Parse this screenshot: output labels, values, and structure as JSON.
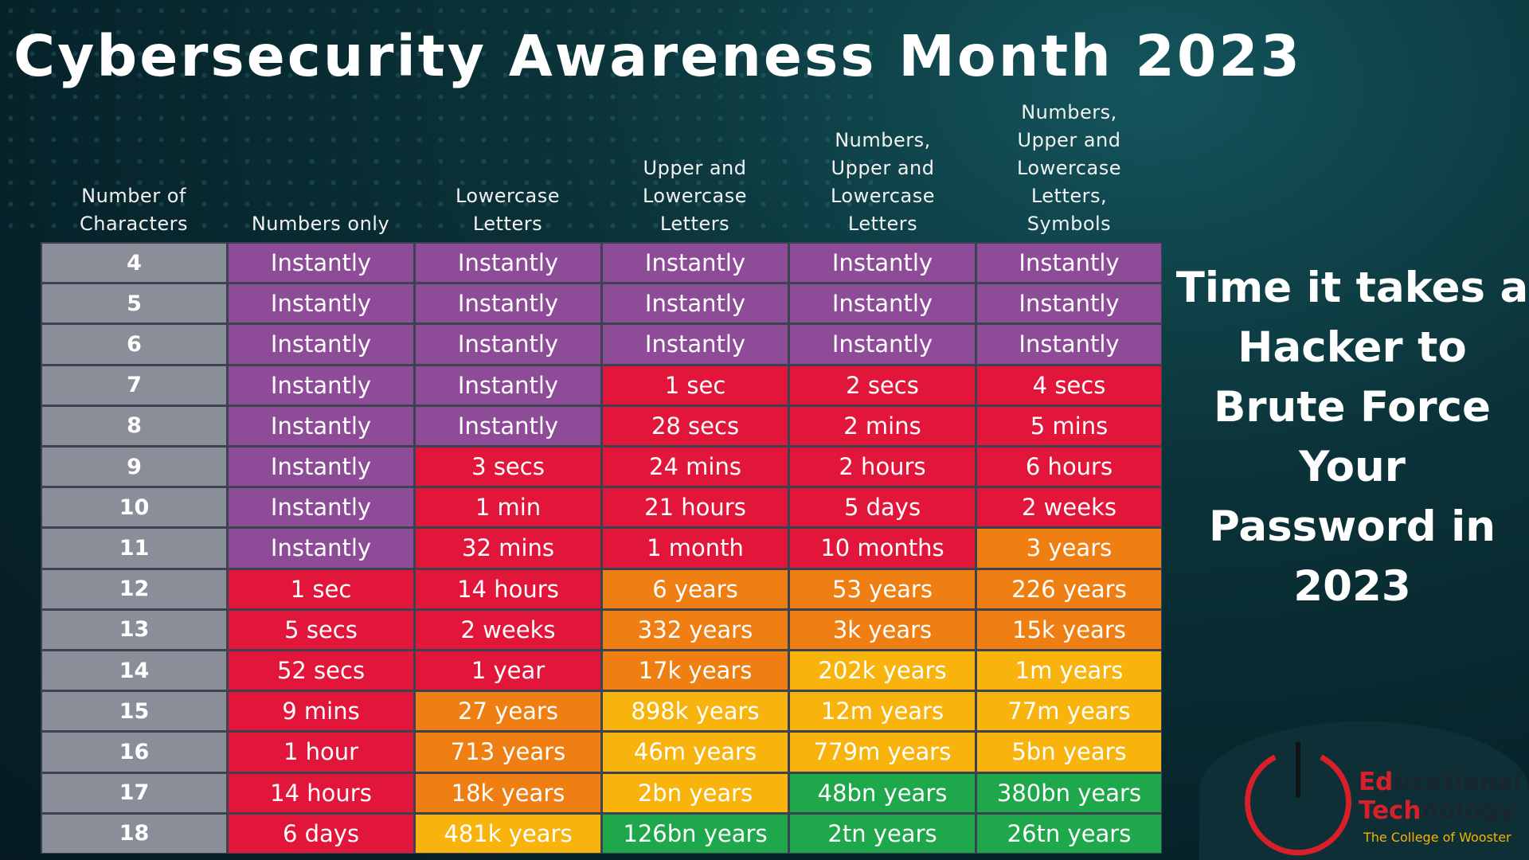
{
  "title": "Cybersecurity Awareness Month 2023",
  "side_title": "Time it takes a\nHacker to\nBrute Force\nYour\nPassword in\n2023",
  "headers": [
    "Number of\nCharacters",
    "Numbers only",
    "Lowercase\nLetters",
    "Upper and\nLowercase\nLetters",
    "Numbers,\nUpper and\nLowercase\nLetters",
    "Numbers,\nUpper and\nLowercase\nLetters,\nSymbols"
  ],
  "colors": {
    "label": "#8a8e99",
    "P": "#8d4b98",
    "R": "#e2163a",
    "O": "#ef7f12",
    "Y": "#f8b40d",
    "G": "#1ea84b"
  },
  "rows": [
    {
      "chars": "4",
      "cells": [
        [
          "Instantly",
          "P"
        ],
        [
          "Instantly",
          "P"
        ],
        [
          "Instantly",
          "P"
        ],
        [
          "Instantly",
          "P"
        ],
        [
          "Instantly",
          "P"
        ]
      ]
    },
    {
      "chars": "5",
      "cells": [
        [
          "Instantly",
          "P"
        ],
        [
          "Instantly",
          "P"
        ],
        [
          "Instantly",
          "P"
        ],
        [
          "Instantly",
          "P"
        ],
        [
          "Instantly",
          "P"
        ]
      ]
    },
    {
      "chars": "6",
      "cells": [
        [
          "Instantly",
          "P"
        ],
        [
          "Instantly",
          "P"
        ],
        [
          "Instantly",
          "P"
        ],
        [
          "Instantly",
          "P"
        ],
        [
          "Instantly",
          "P"
        ]
      ]
    },
    {
      "chars": "7",
      "cells": [
        [
          "Instantly",
          "P"
        ],
        [
          "Instantly",
          "P"
        ],
        [
          "1 sec",
          "R"
        ],
        [
          "2 secs",
          "R"
        ],
        [
          "4 secs",
          "R"
        ]
      ]
    },
    {
      "chars": "8",
      "cells": [
        [
          "Instantly",
          "P"
        ],
        [
          "Instantly",
          "P"
        ],
        [
          "28 secs",
          "R"
        ],
        [
          "2 mins",
          "R"
        ],
        [
          "5 mins",
          "R"
        ]
      ]
    },
    {
      "chars": "9",
      "cells": [
        [
          "Instantly",
          "P"
        ],
        [
          "3 secs",
          "R"
        ],
        [
          "24 mins",
          "R"
        ],
        [
          "2 hours",
          "R"
        ],
        [
          "6 hours",
          "R"
        ]
      ]
    },
    {
      "chars": "10",
      "cells": [
        [
          "Instantly",
          "P"
        ],
        [
          "1 min",
          "R"
        ],
        [
          "21 hours",
          "R"
        ],
        [
          "5 days",
          "R"
        ],
        [
          "2 weeks",
          "R"
        ]
      ]
    },
    {
      "chars": "11",
      "cells": [
        [
          "Instantly",
          "P"
        ],
        [
          "32 mins",
          "R"
        ],
        [
          "1 month",
          "R"
        ],
        [
          "10 months",
          "R"
        ],
        [
          "3 years",
          "O"
        ]
      ]
    },
    {
      "chars": "12",
      "cells": [
        [
          "1 sec",
          "R"
        ],
        [
          "14 hours",
          "R"
        ],
        [
          "6 years",
          "O"
        ],
        [
          "53 years",
          "O"
        ],
        [
          "226 years",
          "O"
        ]
      ]
    },
    {
      "chars": "13",
      "cells": [
        [
          "5 secs",
          "R"
        ],
        [
          "2 weeks",
          "R"
        ],
        [
          "332 years",
          "O"
        ],
        [
          "3k years",
          "O"
        ],
        [
          "15k years",
          "O"
        ]
      ]
    },
    {
      "chars": "14",
      "cells": [
        [
          "52 secs",
          "R"
        ],
        [
          "1 year",
          "R"
        ],
        [
          "17k years",
          "O"
        ],
        [
          "202k years",
          "Y"
        ],
        [
          "1m years",
          "Y"
        ]
      ]
    },
    {
      "chars": "15",
      "cells": [
        [
          "9 mins",
          "R"
        ],
        [
          "27 years",
          "O"
        ],
        [
          "898k years",
          "Y"
        ],
        [
          "12m years",
          "Y"
        ],
        [
          "77m years",
          "Y"
        ]
      ]
    },
    {
      "chars": "16",
      "cells": [
        [
          "1 hour",
          "R"
        ],
        [
          "713 years",
          "O"
        ],
        [
          "46m years",
          "Y"
        ],
        [
          "779m years",
          "Y"
        ],
        [
          "5bn years",
          "Y"
        ]
      ]
    },
    {
      "chars": "17",
      "cells": [
        [
          "14 hours",
          "R"
        ],
        [
          "18k years",
          "O"
        ],
        [
          "2bn years",
          "Y"
        ],
        [
          "48bn years",
          "G"
        ],
        [
          "380bn years",
          "G"
        ]
      ]
    },
    {
      "chars": "18",
      "cells": [
        [
          "6 days",
          "R"
        ],
        [
          "481k years",
          "Y"
        ],
        [
          "126bn years",
          "G"
        ],
        [
          "2tn years",
          "G"
        ],
        [
          "26tn years",
          "G"
        ]
      ]
    }
  ],
  "logo": {
    "line1_accent": "Ed",
    "line1_rest": "ucational",
    "line2_accent": "Tech",
    "line2_rest": "nology",
    "subtitle": "The College of Wooster"
  }
}
